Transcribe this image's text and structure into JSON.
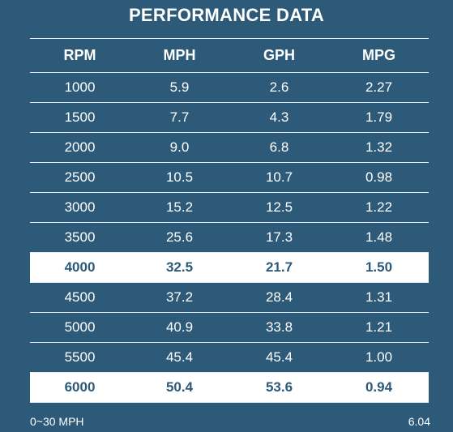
{
  "title": "PERFORMANCE DATA",
  "colors": {
    "background": "#2c5a78",
    "highlight_row": "#ffffff",
    "text": "#ffffff"
  },
  "table": {
    "headers": [
      "RPM",
      "MPH",
      "GPH",
      "MPG"
    ],
    "rows": [
      {
        "cells": [
          "1000",
          "5.9",
          "2.6",
          "2.27"
        ],
        "highlighted": false
      },
      {
        "cells": [
          "1500",
          "7.7",
          "4.3",
          "1.79"
        ],
        "highlighted": false
      },
      {
        "cells": [
          "2000",
          "9.0",
          "6.8",
          "1.32"
        ],
        "highlighted": false
      },
      {
        "cells": [
          "2500",
          "10.5",
          "10.7",
          "0.98"
        ],
        "highlighted": false
      },
      {
        "cells": [
          "3000",
          "15.2",
          "12.5",
          "1.22"
        ],
        "highlighted": false
      },
      {
        "cells": [
          "3500",
          "25.6",
          "17.3",
          "1.48"
        ],
        "highlighted": false
      },
      {
        "cells": [
          "4000",
          "32.5",
          "21.7",
          "1.50"
        ],
        "highlighted": true
      },
      {
        "cells": [
          "4500",
          "37.2",
          "28.4",
          "1.31"
        ],
        "highlighted": false
      },
      {
        "cells": [
          "5000",
          "40.9",
          "33.8",
          "1.21"
        ],
        "highlighted": false
      },
      {
        "cells": [
          "5500",
          "45.4",
          "45.4",
          "1.00"
        ],
        "highlighted": false
      },
      {
        "cells": [
          "6000",
          "50.4",
          "53.6",
          "0.94"
        ],
        "highlighted": true
      }
    ]
  },
  "footer": {
    "left": "0~30 MPH",
    "right": "6.04"
  }
}
